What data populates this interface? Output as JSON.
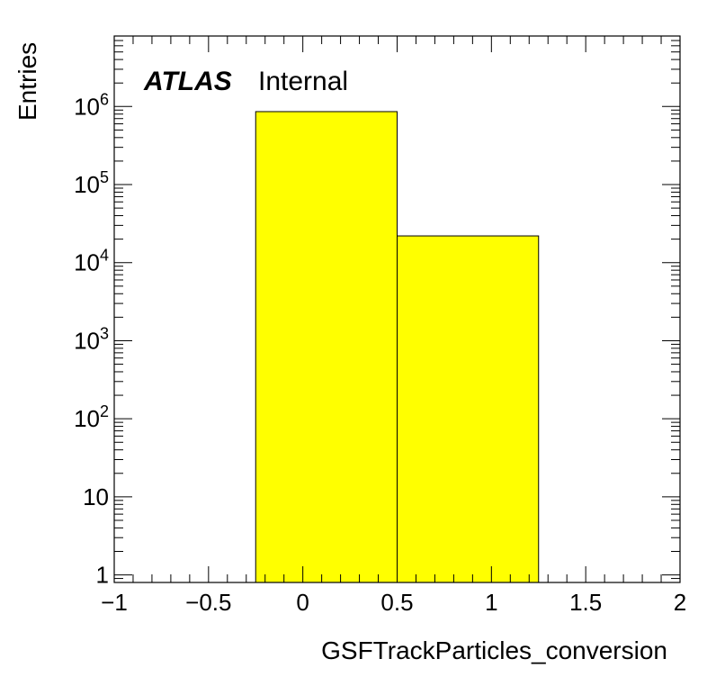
{
  "chart_data": {
    "type": "bar",
    "title": "",
    "xlabel": "GSFTrackParticles_conversion",
    "ylabel": "Entries",
    "yscale": "log",
    "xlim": [
      -1,
      2
    ],
    "ylim": [
      0.8,
      8000000
    ],
    "bins": [
      {
        "low": -0.25,
        "high": 0.5,
        "value": 860000
      },
      {
        "low": 0.5,
        "high": 1.25,
        "value": 22000
      }
    ],
    "fill_color": "#ffff00",
    "edge_color": "#000000",
    "x_ticks": [
      {
        "value": -1,
        "label": "−1"
      },
      {
        "value": -0.5,
        "label": "−0.5"
      },
      {
        "value": 0,
        "label": "0"
      },
      {
        "value": 0.5,
        "label": "0.5"
      },
      {
        "value": 1,
        "label": "1"
      },
      {
        "value": 1.5,
        "label": "1.5"
      },
      {
        "value": 2,
        "label": "2"
      }
    ],
    "y_ticks": [
      {
        "value": 1,
        "base": "1",
        "exp": ""
      },
      {
        "value": 10,
        "base": "10",
        "exp": ""
      },
      {
        "value": 100,
        "base": "10",
        "exp": "2"
      },
      {
        "value": 1000,
        "base": "10",
        "exp": "3"
      },
      {
        "value": 10000,
        "base": "10",
        "exp": "4"
      },
      {
        "value": 100000,
        "base": "10",
        "exp": "5"
      },
      {
        "value": 1000000,
        "base": "10",
        "exp": "6"
      }
    ],
    "annotations": {
      "experiment": "ATLAS",
      "status": "Internal"
    },
    "grid": false,
    "legend": "none"
  }
}
